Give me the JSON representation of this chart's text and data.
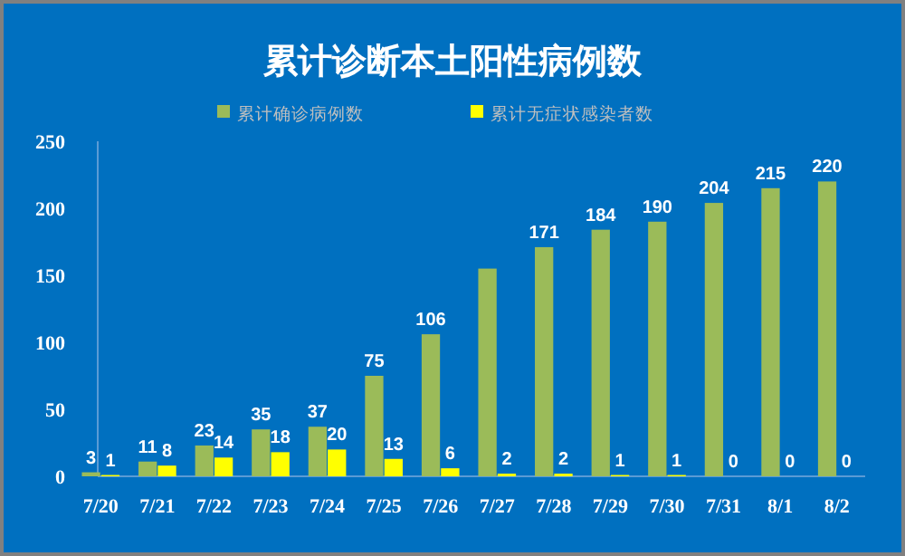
{
  "chart_data": {
    "type": "bar",
    "title": "累计诊断本土阳性病例数",
    "categories": [
      "7/20",
      "7/21",
      "7/22",
      "7/23",
      "7/24",
      "7/25",
      "7/26",
      "7/27",
      "7/28",
      "7/29",
      "7/30",
      "7/31",
      "8/1",
      "8/2"
    ],
    "series": [
      {
        "name": "累计确诊病例数",
        "color": "#9bbb59",
        "values": [
          3,
          11,
          23,
          35,
          37,
          75,
          106,
          155,
          171,
          184,
          190,
          204,
          215,
          220
        ],
        "value_labels": [
          "3",
          "11",
          "23",
          "35",
          "37",
          "75",
          "106",
          null,
          "171",
          "184",
          "190",
          "204",
          "215",
          "220"
        ]
      },
      {
        "name": "累计无症状感染者数",
        "color": "#ffff00",
        "values": [
          1,
          8,
          14,
          18,
          20,
          13,
          6,
          2,
          2,
          1,
          1,
          0,
          0,
          0
        ],
        "value_labels": [
          "1",
          "8",
          "14",
          "18",
          "20",
          "13",
          "6",
          "2",
          "2",
          "1",
          "1",
          "0",
          "0",
          "0"
        ]
      }
    ],
    "ylim": [
      0,
      250
    ],
    "yticks": [
      0,
      50,
      100,
      150,
      200,
      250
    ],
    "grid": false,
    "legend": "top"
  }
}
